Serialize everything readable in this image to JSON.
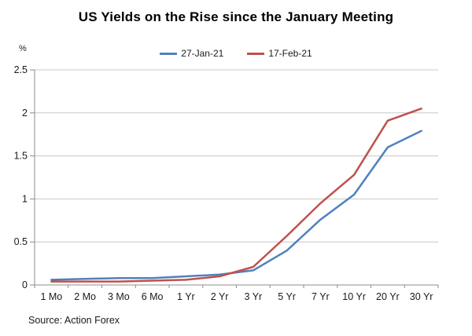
{
  "title": "US Yields on the Rise since the January Meeting",
  "unit_label": "%",
  "source_note": "Source: Action Forex",
  "colors": {
    "series_jan": "#4F81BD",
    "series_feb": "#C0504D",
    "gridline": "#C8C8C8",
    "axis": "#8C8C8C",
    "tick_text": "#1a1a1a",
    "background": "#ffffff"
  },
  "chart_data": {
    "type": "line",
    "title": "US Yields on the Rise since the January Meeting",
    "ylabel": "%",
    "categories": [
      "1 Mo",
      "2 Mo",
      "3 Mo",
      "6 Mo",
      "1 Yr",
      "2 Yr",
      "3 Yr",
      "5 Yr",
      "7 Yr",
      "10 Yr",
      "20 Yr",
      "30 Yr"
    ],
    "series": [
      {
        "name": "27-Jan-21",
        "color": "#4F81BD",
        "values": [
          0.06,
          0.07,
          0.08,
          0.08,
          0.1,
          0.12,
          0.17,
          0.4,
          0.76,
          1.05,
          1.6,
          1.79
        ]
      },
      {
        "name": "17-Feb-21",
        "color": "#C0504D",
        "values": [
          0.04,
          0.04,
          0.04,
          0.05,
          0.06,
          0.1,
          0.21,
          0.57,
          0.95,
          1.28,
          1.91,
          2.05
        ]
      }
    ],
    "ylim": [
      0,
      2.5
    ],
    "yticks": [
      0,
      0.5,
      1,
      1.5,
      2,
      2.5
    ],
    "grid": true,
    "legend_position": "top-center"
  }
}
